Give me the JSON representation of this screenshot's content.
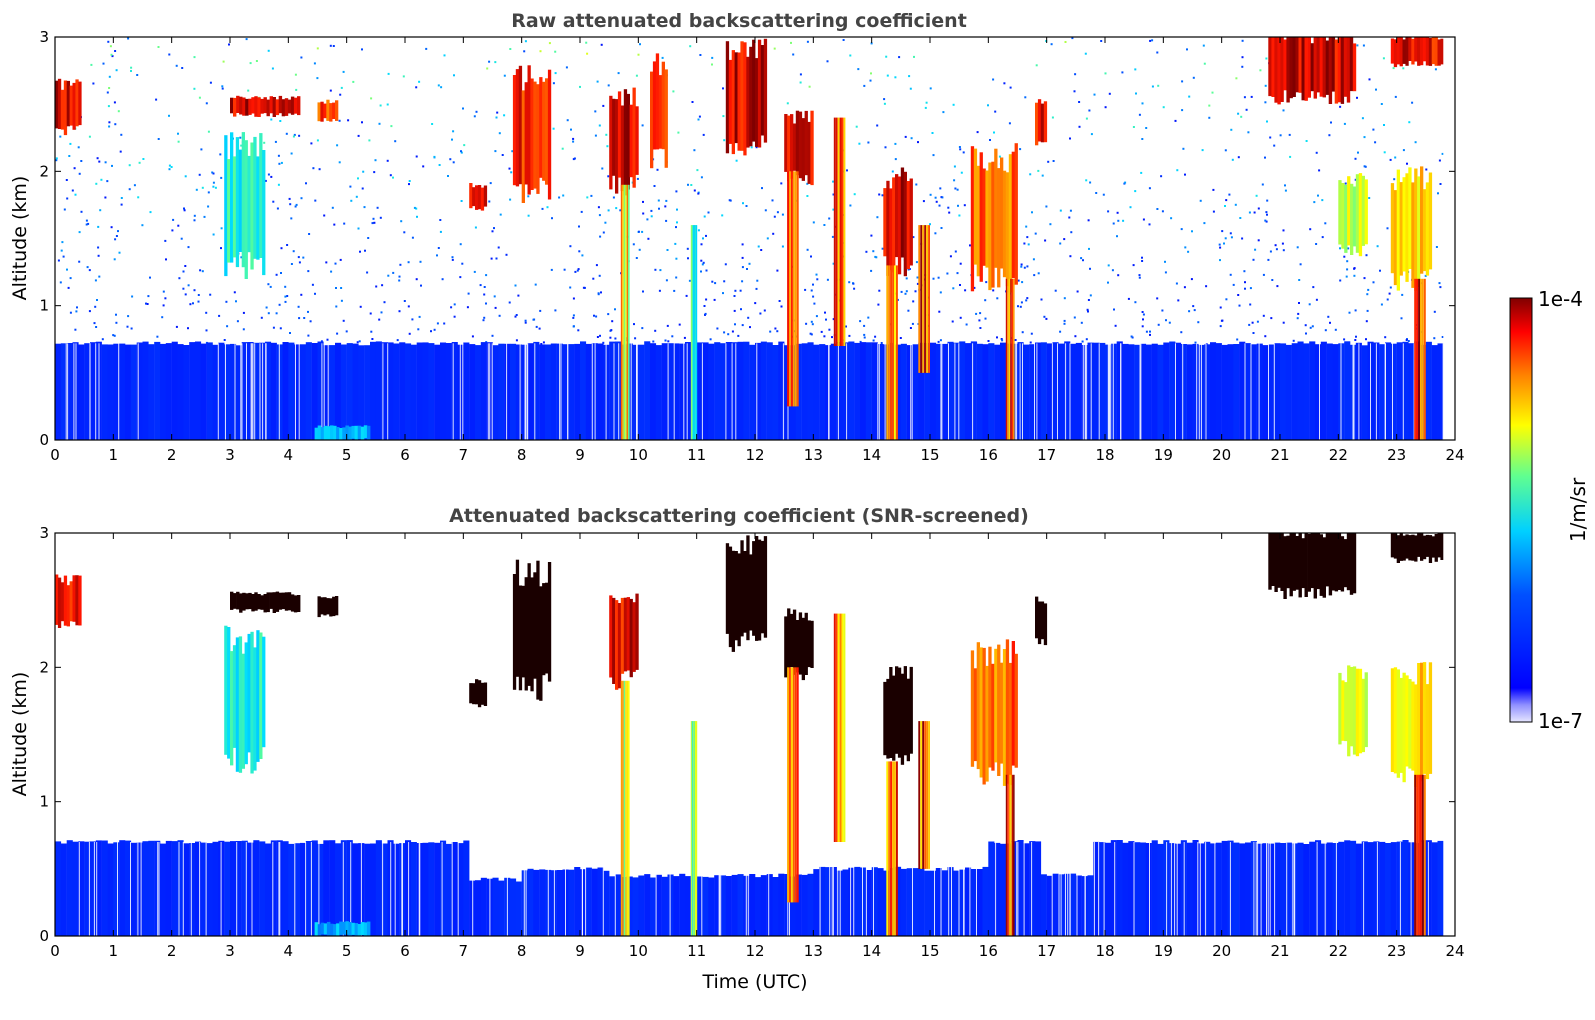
{
  "chart_data": [
    {
      "type": "heatmap",
      "title": "Raw attenuated backscattering coefficient",
      "xlabel": "",
      "ylabel": "Altitude (km)",
      "xlim": [
        0,
        24
      ],
      "ylim": [
        0,
        3
      ],
      "x_ticks": [
        "0",
        "1",
        "2",
        "3",
        "4",
        "5",
        "6",
        "7",
        "8",
        "9",
        "10",
        "11",
        "12",
        "13",
        "14",
        "15",
        "16",
        "17",
        "18",
        "19",
        "20",
        "21",
        "22",
        "23",
        "24"
      ],
      "y_ticks": [
        "0",
        "1",
        "2",
        "3"
      ],
      "data_extent_x": [
        0,
        23.8
      ],
      "grid": false,
      "colorscale": "jet",
      "screened": false,
      "noise_level": "high",
      "boundary_layer_top_km": 0.72,
      "features": [
        {
          "kind": "boundary_layer",
          "x": [
            0,
            23.8
          ],
          "y": [
            0,
            0.72
          ],
          "intensity": 0.08
        },
        {
          "kind": "aerosol_patch",
          "x": [
            4.45,
            5.4
          ],
          "y": [
            0,
            0.1
          ],
          "intensity": 0.38
        },
        {
          "kind": "cloud",
          "x": [
            0,
            0.45
          ],
          "y": [
            2.3,
            2.65
          ],
          "intensity": 0.95
        },
        {
          "kind": "cloud",
          "x": [
            3.0,
            4.2
          ],
          "y": [
            2.42,
            2.55
          ],
          "intensity": 0.97
        },
        {
          "kind": "cloud",
          "x": [
            4.5,
            4.85
          ],
          "y": [
            2.38,
            2.52
          ],
          "intensity": 0.9
        },
        {
          "kind": "cloud",
          "x": [
            2.9,
            3.6
          ],
          "y": [
            1.3,
            2.2
          ],
          "intensity": 0.5
        },
        {
          "kind": "cloud",
          "x": [
            7.1,
            7.4
          ],
          "y": [
            1.72,
            1.9
          ],
          "intensity": 0.95
        },
        {
          "kind": "cloud",
          "x": [
            7.85,
            8.5
          ],
          "y": [
            1.85,
            2.7
          ],
          "intensity": 0.93
        },
        {
          "kind": "cloud",
          "x": [
            9.5,
            10.0
          ],
          "y": [
            1.9,
            2.55
          ],
          "intensity": 0.95
        },
        {
          "kind": "cloud",
          "x": [
            10.2,
            10.5
          ],
          "y": [
            2.1,
            2.8
          ],
          "intensity": 0.92
        },
        {
          "kind": "cloud",
          "x": [
            11.5,
            12.2
          ],
          "y": [
            2.2,
            2.9
          ],
          "intensity": 0.96
        },
        {
          "kind": "cloud",
          "x": [
            12.5,
            13.0
          ],
          "y": [
            1.95,
            2.4
          ],
          "intensity": 0.96
        },
        {
          "kind": "cloud",
          "x": [
            14.2,
            14.7
          ],
          "y": [
            1.3,
            1.95
          ],
          "intensity": 0.97
        },
        {
          "kind": "cloud",
          "x": [
            15.7,
            16.5
          ],
          "y": [
            1.2,
            2.1
          ],
          "intensity": 0.85
        },
        {
          "kind": "cloud",
          "x": [
            16.8,
            17.0
          ],
          "y": [
            2.2,
            2.5
          ],
          "intensity": 0.95
        },
        {
          "kind": "cloud",
          "x": [
            20.8,
            22.3
          ],
          "y": [
            2.55,
            3.0
          ],
          "intensity": 0.97
        },
        {
          "kind": "cloud",
          "x": [
            22.9,
            23.8
          ],
          "y": [
            2.8,
            3.0
          ],
          "intensity": 0.95
        },
        {
          "kind": "cloud",
          "x": [
            22.0,
            22.5
          ],
          "y": [
            1.4,
            1.95
          ],
          "intensity": 0.65
        },
        {
          "kind": "cloud",
          "x": [
            22.9,
            23.6
          ],
          "y": [
            1.2,
            1.95
          ],
          "intensity": 0.75
        },
        {
          "kind": "fall_streak",
          "x": [
            9.7,
            9.85
          ],
          "y": [
            0,
            1.9
          ],
          "intensity": 0.7
        },
        {
          "kind": "fall_streak",
          "x": [
            10.9,
            11.0
          ],
          "y": [
            0,
            1.6
          ],
          "intensity": 0.55
        },
        {
          "kind": "fall_streak",
          "x": [
            12.55,
            12.75
          ],
          "y": [
            0.25,
            2.0
          ],
          "intensity": 0.85
        },
        {
          "kind": "fall_streak",
          "x": [
            13.35,
            13.55
          ],
          "y": [
            0.7,
            2.4
          ],
          "intensity": 0.8
        },
        {
          "kind": "fall_streak",
          "x": [
            14.25,
            14.45
          ],
          "y": [
            0,
            1.3
          ],
          "intensity": 0.8
        },
        {
          "kind": "fall_streak",
          "x": [
            14.8,
            15.0
          ],
          "y": [
            0.5,
            1.6
          ],
          "intensity": 0.85
        },
        {
          "kind": "fall_streak",
          "x": [
            16.3,
            16.45
          ],
          "y": [
            0,
            1.2
          ],
          "intensity": 0.85
        },
        {
          "kind": "fall_streak",
          "x": [
            23.3,
            23.5
          ],
          "y": [
            0,
            1.2
          ],
          "intensity": 0.9
        }
      ]
    },
    {
      "type": "heatmap",
      "title": "Attenuated backscattering coefficient (SNR-screened)",
      "xlabel": "Time (UTC)",
      "ylabel": "Altitude (km)",
      "xlim": [
        0,
        24
      ],
      "ylim": [
        0,
        3
      ],
      "x_ticks": [
        "0",
        "1",
        "2",
        "3",
        "4",
        "5",
        "6",
        "7",
        "8",
        "9",
        "10",
        "11",
        "12",
        "13",
        "14",
        "15",
        "16",
        "17",
        "18",
        "19",
        "20",
        "21",
        "22",
        "23",
        "24"
      ],
      "y_ticks": [
        "0",
        "1",
        "2",
        "3"
      ],
      "data_extent_x": [
        0,
        23.8
      ],
      "grid": false,
      "colorscale": "jet",
      "screened": true,
      "noise_level": "none",
      "boundary_layer_top_km": 0.7,
      "boundary_layer_dips": [
        {
          "x": [
            7.1,
            8.0
          ],
          "top_km": 0.42
        },
        {
          "x": [
            8.0,
            9.5
          ],
          "top_km": 0.5
        },
        {
          "x": [
            9.5,
            13.0
          ],
          "top_km": 0.45
        },
        {
          "x": [
            13.0,
            16.0
          ],
          "top_km": 0.5
        },
        {
          "x": [
            16.9,
            17.8
          ],
          "top_km": 0.45
        }
      ],
      "features": [
        {
          "kind": "aerosol_patch",
          "x": [
            4.45,
            5.4
          ],
          "y": [
            0,
            0.1
          ],
          "intensity": 0.38
        },
        {
          "kind": "cloud",
          "x": [
            0,
            0.45
          ],
          "y": [
            2.3,
            2.65
          ],
          "intensity": 0.95
        },
        {
          "kind": "cloud",
          "x": [
            3.0,
            4.2
          ],
          "y": [
            2.42,
            2.55
          ],
          "intensity": 1.0
        },
        {
          "kind": "cloud",
          "x": [
            4.5,
            4.85
          ],
          "y": [
            2.38,
            2.52
          ],
          "intensity": 1.0
        },
        {
          "kind": "cloud",
          "x": [
            2.9,
            3.6
          ],
          "y": [
            1.3,
            2.2
          ],
          "intensity": 0.5
        },
        {
          "kind": "cloud",
          "x": [
            7.1,
            7.4
          ],
          "y": [
            1.72,
            1.9
          ],
          "intensity": 1.0
        },
        {
          "kind": "cloud",
          "x": [
            7.85,
            8.5
          ],
          "y": [
            1.85,
            2.7
          ],
          "intensity": 1.0
        },
        {
          "kind": "cloud",
          "x": [
            9.5,
            10.0
          ],
          "y": [
            1.9,
            2.55
          ],
          "intensity": 0.95
        },
        {
          "kind": "cloud",
          "x": [
            11.5,
            12.2
          ],
          "y": [
            2.2,
            2.9
          ],
          "intensity": 1.0
        },
        {
          "kind": "cloud",
          "x": [
            12.5,
            13.0
          ],
          "y": [
            1.95,
            2.4
          ],
          "intensity": 1.0
        },
        {
          "kind": "cloud",
          "x": [
            14.2,
            14.7
          ],
          "y": [
            1.3,
            1.95
          ],
          "intensity": 1.0
        },
        {
          "kind": "cloud",
          "x": [
            15.7,
            16.5
          ],
          "y": [
            1.2,
            2.1
          ],
          "intensity": 0.85
        },
        {
          "kind": "cloud",
          "x": [
            16.8,
            17.0
          ],
          "y": [
            2.2,
            2.5
          ],
          "intensity": 1.0
        },
        {
          "kind": "cloud",
          "x": [
            20.8,
            22.3
          ],
          "y": [
            2.55,
            3.0
          ],
          "intensity": 1.0
        },
        {
          "kind": "cloud",
          "x": [
            22.9,
            23.8
          ],
          "y": [
            2.8,
            3.0
          ],
          "intensity": 1.0
        },
        {
          "kind": "cloud",
          "x": [
            22.0,
            22.5
          ],
          "y": [
            1.4,
            1.95
          ],
          "intensity": 0.65
        },
        {
          "kind": "cloud",
          "x": [
            22.9,
            23.6
          ],
          "y": [
            1.2,
            1.95
          ],
          "intensity": 0.75
        },
        {
          "kind": "fall_streak",
          "x": [
            9.7,
            9.85
          ],
          "y": [
            0,
            1.9
          ],
          "intensity": 0.7
        },
        {
          "kind": "fall_streak",
          "x": [
            10.9,
            11.0
          ],
          "y": [
            0,
            1.6
          ],
          "intensity": 0.55
        },
        {
          "kind": "fall_streak",
          "x": [
            12.55,
            12.75
          ],
          "y": [
            0.25,
            2.0
          ],
          "intensity": 0.85
        },
        {
          "kind": "fall_streak",
          "x": [
            13.35,
            13.55
          ],
          "y": [
            0.7,
            2.4
          ],
          "intensity": 0.8
        },
        {
          "kind": "fall_streak",
          "x": [
            14.25,
            14.45
          ],
          "y": [
            0,
            1.3
          ],
          "intensity": 0.8
        },
        {
          "kind": "fall_streak",
          "x": [
            14.8,
            15.0
          ],
          "y": [
            0.5,
            1.6
          ],
          "intensity": 0.85
        },
        {
          "kind": "fall_streak",
          "x": [
            16.3,
            16.45
          ],
          "y": [
            0,
            1.2
          ],
          "intensity": 0.85
        },
        {
          "kind": "fall_streak",
          "x": [
            23.3,
            23.5
          ],
          "y": [
            0,
            1.2
          ],
          "intensity": 0.9
        }
      ]
    }
  ],
  "colorbar": {
    "label": "1/m/sr",
    "max_label": "1e-4",
    "min_label": "1e-7",
    "colormap": "jet",
    "colors": [
      "#00008f",
      "#0000ff",
      "#00ffff",
      "#ffff00",
      "#ff0000",
      "#800000"
    ]
  }
}
